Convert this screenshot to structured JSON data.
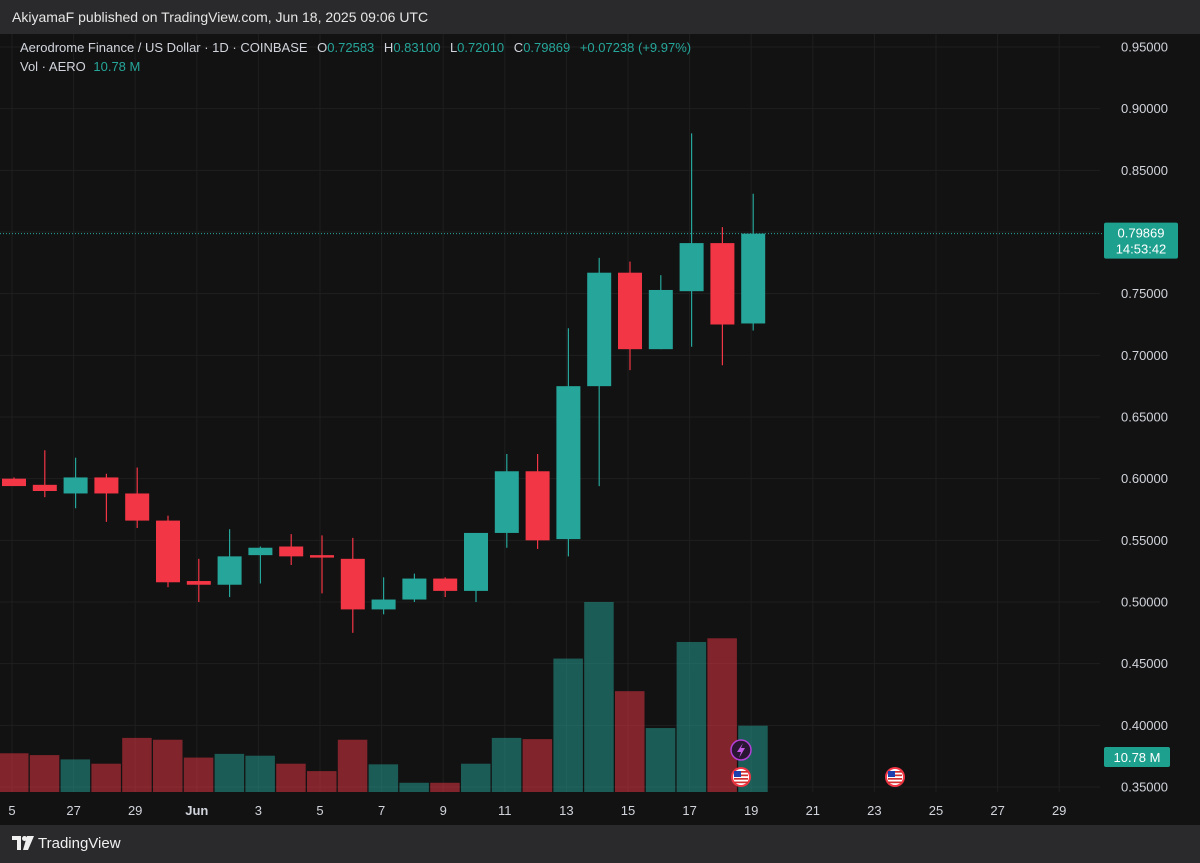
{
  "header": {
    "text": "AkiyamaF published on TradingView.com, Jun 18, 2025 09:06 UTC"
  },
  "legend": {
    "symbol": "Aerodrome Finance / US Dollar · 1D · COINBASE",
    "o_label": "O",
    "o_value": "0.72583",
    "h_label": "H",
    "h_value": "0.83100",
    "l_label": "L",
    "l_value": "0.72010",
    "c_label": "C",
    "c_value": "0.79869",
    "change": "+0.07238 (+9.97%)",
    "vol_label": "Vol · AERO",
    "vol_value": "10.78 M"
  },
  "price_tag": {
    "price": "0.79869",
    "countdown": "14:53:42"
  },
  "volume_tag": "10.78 M",
  "footer": {
    "brand": "TradingView"
  },
  "colors": {
    "up": "#26a69a",
    "down": "#f23645",
    "background": "#121212",
    "tag": "#1ea08f"
  },
  "chart_data": {
    "type": "candlestick",
    "y_ticks": [
      "0.35000",
      "0.40000",
      "0.45000",
      "0.50000",
      "0.55000",
      "0.60000",
      "0.65000",
      "0.70000",
      "0.75000",
      "0.80000",
      "0.85000",
      "0.90000",
      "0.95000"
    ],
    "x_ticks": [
      "5",
      "27",
      "29",
      "Jun",
      "3",
      "5",
      "7",
      "9",
      "11",
      "13",
      "15",
      "17",
      "19",
      "21",
      "23",
      "25",
      "27",
      "29"
    ],
    "ylim": [
      0.35,
      0.95
    ],
    "last_price": 0.79869,
    "candles": [
      {
        "o": 0.6,
        "h": 0.601,
        "l": 0.594,
        "c": 0.594
      },
      {
        "o": 0.595,
        "h": 0.623,
        "l": 0.585,
        "c": 0.59
      },
      {
        "o": 0.588,
        "h": 0.617,
        "l": 0.576,
        "c": 0.601
      },
      {
        "o": 0.601,
        "h": 0.604,
        "l": 0.565,
        "c": 0.588
      },
      {
        "o": 0.588,
        "h": 0.609,
        "l": 0.56,
        "c": 0.566
      },
      {
        "o": 0.566,
        "h": 0.57,
        "l": 0.512,
        "c": 0.516
      },
      {
        "o": 0.517,
        "h": 0.535,
        "l": 0.5,
        "c": 0.514
      },
      {
        "o": 0.514,
        "h": 0.559,
        "l": 0.504,
        "c": 0.537
      },
      {
        "o": 0.538,
        "h": 0.545,
        "l": 0.515,
        "c": 0.544
      },
      {
        "o": 0.545,
        "h": 0.555,
        "l": 0.53,
        "c": 0.537
      },
      {
        "o": 0.538,
        "h": 0.554,
        "l": 0.507,
        "c": 0.536
      },
      {
        "o": 0.535,
        "h": 0.552,
        "l": 0.475,
        "c": 0.494
      },
      {
        "o": 0.494,
        "h": 0.52,
        "l": 0.49,
        "c": 0.502
      },
      {
        "o": 0.502,
        "h": 0.523,
        "l": 0.5,
        "c": 0.519
      },
      {
        "o": 0.519,
        "h": 0.52,
        "l": 0.504,
        "c": 0.509
      },
      {
        "o": 0.509,
        "h": 0.555,
        "l": 0.5,
        "c": 0.556
      },
      {
        "o": 0.556,
        "h": 0.62,
        "l": 0.544,
        "c": 0.606
      },
      {
        "o": 0.606,
        "h": 0.62,
        "l": 0.543,
        "c": 0.55
      },
      {
        "o": 0.551,
        "h": 0.722,
        "l": 0.537,
        "c": 0.675
      },
      {
        "o": 0.675,
        "h": 0.779,
        "l": 0.594,
        "c": 0.767
      },
      {
        "o": 0.767,
        "h": 0.776,
        "l": 0.688,
        "c": 0.705
      },
      {
        "o": 0.705,
        "h": 0.765,
        "l": 0.705,
        "c": 0.753
      },
      {
        "o": 0.752,
        "h": 0.88,
        "l": 0.707,
        "c": 0.791
      },
      {
        "o": 0.791,
        "h": 0.804,
        "l": 0.692,
        "c": 0.725
      },
      {
        "o": 0.72583,
        "h": 0.831,
        "l": 0.7201,
        "c": 0.79869
      }
    ],
    "volume": {
      "unit": "M",
      "values": [
        6.3,
        6.0,
        5.3,
        4.6,
        8.8,
        8.5,
        5.6,
        6.2,
        5.9,
        4.6,
        3.4,
        8.5,
        4.5,
        1.5,
        1.5,
        4.6,
        8.8,
        8.6,
        21.7,
        30.9,
        16.4,
        10.4,
        24.4,
        25.0,
        10.78
      ]
    }
  }
}
